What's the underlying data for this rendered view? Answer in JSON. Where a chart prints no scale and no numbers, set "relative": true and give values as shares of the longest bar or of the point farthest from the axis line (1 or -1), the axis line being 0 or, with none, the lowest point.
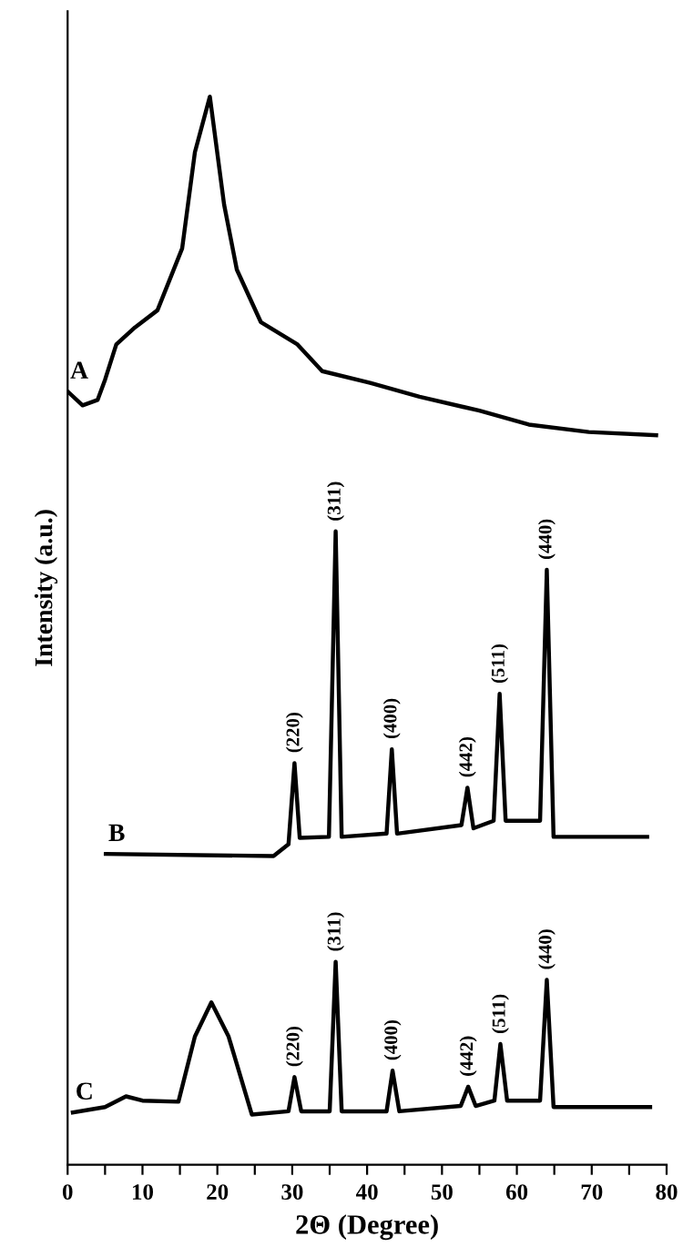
{
  "chart_data": {
    "type": "line",
    "relative": true,
    "xlabel": "2Θ (Degree)",
    "ylabel": "Intensity (a.u.)",
    "xlim": [
      0,
      80
    ],
    "xticks": [
      0,
      {
        "value": 5,
        "label": null
      },
      10,
      {
        "value": 15,
        "label": null
      },
      20,
      {
        "value": 25,
        "label": null
      },
      30,
      {
        "value": 35,
        "label": null
      },
      40,
      {
        "value": 45,
        "label": null
      },
      50,
      {
        "value": 55,
        "label": null
      },
      60,
      {
        "value": 65,
        "label": null
      },
      70,
      {
        "value": 75,
        "label": null
      },
      80
    ],
    "legend": false,
    "marker": "none",
    "line_style": "solid",
    "grid": false,
    "series": [
      {
        "name": "A",
        "color": "#000000",
        "x": [
          0,
          2,
          4,
          5,
          6.5,
          9,
          12,
          15.3,
          17,
          19,
          20.9,
          22.6,
          25.8,
          30.7,
          34,
          40.4,
          47,
          55,
          61.6,
          69.6,
          78.6
        ],
        "values": [
          0.724,
          0.711,
          0.716,
          0.735,
          0.768,
          0.784,
          0.8,
          0.858,
          0.948,
          1.0,
          0.899,
          0.838,
          0.789,
          0.768,
          0.743,
          0.732,
          0.719,
          0.706,
          0.693,
          0.686,
          0.683
        ]
      },
      {
        "name": "B",
        "color": "#000000",
        "x": [
          5.1,
          27.5,
          29.5,
          30.3,
          31,
          34.9,
          35.8,
          36.6,
          42.6,
          43.3,
          44,
          52.6,
          53.4,
          54.2,
          56.9,
          57.7,
          58.5,
          63.1,
          64,
          64.9,
          77.4
        ],
        "values": [
          0.291,
          0.289,
          0.3,
          0.376,
          0.306,
          0.307,
          0.593,
          0.307,
          0.31,
          0.389,
          0.31,
          0.318,
          0.353,
          0.315,
          0.322,
          0.441,
          0.322,
          0.322,
          0.557,
          0.307,
          0.307
        ]
      },
      {
        "name": "C",
        "color": "#000000",
        "x": [
          0.7,
          5,
          7.8,
          10,
          14.8,
          17,
          19.2,
          21.5,
          24.6,
          29.5,
          30.3,
          31.2,
          35,
          35.8,
          36.6,
          42.6,
          43.4,
          44.3,
          52.5,
          53.5,
          54.5,
          57,
          57.8,
          58.7,
          63.1,
          64,
          64.9,
          77.8
        ],
        "values": [
          0.049,
          0.054,
          0.064,
          0.06,
          0.059,
          0.12,
          0.152,
          0.12,
          0.047,
          0.05,
          0.082,
          0.05,
          0.05,
          0.19,
          0.05,
          0.05,
          0.088,
          0.05,
          0.055,
          0.073,
          0.055,
          0.06,
          0.113,
          0.06,
          0.06,
          0.173,
          0.054,
          0.054
        ]
      }
    ],
    "annotations": [
      {
        "text": "(220)",
        "x": 30.3,
        "y": 0.376
      },
      {
        "text": "(311)",
        "x": 35.8,
        "y": 0.593
      },
      {
        "text": "(400)",
        "x": 43.3,
        "y": 0.389
      },
      {
        "text": "(442)",
        "x": 53.4,
        "y": 0.353
      },
      {
        "text": "(511)",
        "x": 57.7,
        "y": 0.441
      },
      {
        "text": "(440)",
        "x": 64,
        "y": 0.557
      },
      {
        "text": "(220)",
        "x": 30.3,
        "y": 0.082
      },
      {
        "text": "(311)",
        "x": 35.8,
        "y": 0.19
      },
      {
        "text": "(400)",
        "x": 43.4,
        "y": 0.088
      },
      {
        "text": "(442)",
        "x": 53.5,
        "y": 0.073
      },
      {
        "text": "(511)",
        "x": 57.8,
        "y": 0.113
      },
      {
        "text": "(440)",
        "x": 64,
        "y": 0.173
      }
    ]
  }
}
